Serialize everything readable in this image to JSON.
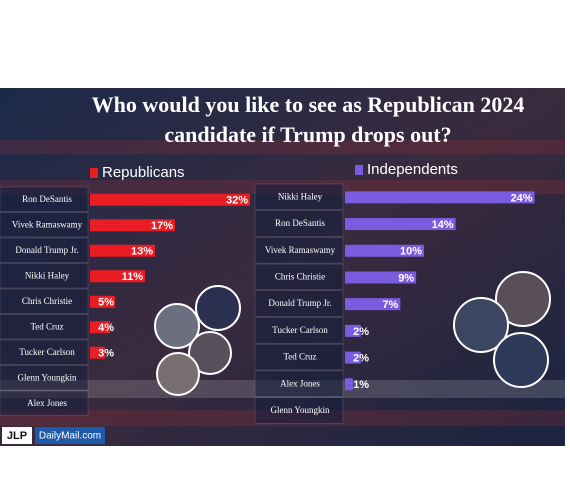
{
  "title": [
    "Who would you like to see as Republican 2024",
    "candidate if Trump drops out?"
  ],
  "chart_data": [
    {
      "type": "bar",
      "horizontal": true,
      "categories": [
        "Ron DeSantis",
        "Vivek Ramaswamy",
        "Donald Trump Jr.",
        "Nikki Haley",
        "Chris Christie",
        "Ted Cruz",
        "Tucker Carlson",
        "Glenn Youngkin",
        "Alex Jones"
      ],
      "series": [
        {
          "name": "Republicans",
          "color": "#ea1c24",
          "values": [
            32,
            17,
            13,
            11,
            5,
            4,
            3,
            null,
            null
          ],
          "value_labels": [
            "32%",
            "17%",
            "13%",
            "11%",
            "5%",
            "4%",
            "3%",
            null,
            null
          ]
        }
      ]
    },
    {
      "type": "bar",
      "horizontal": true,
      "categories": [
        "Nikki Haley",
        "Ron DeSantis",
        "Vivek Ramaswamy",
        "Chris Christie",
        "Donald Trump Jr.",
        "Tucker Carlson",
        "Ted Cruz",
        "Alex Jones",
        "Glenn Youngkin"
      ],
      "series": [
        {
          "name": "Independents",
          "color": "#7b5ce0",
          "values": [
            24,
            14,
            10,
            9,
            7,
            2,
            2,
            1,
            null
          ],
          "value_labels": [
            "24%",
            "14%",
            "10%",
            "9%",
            "7%",
            "2%",
            "2%",
            "1%",
            null
          ]
        }
      ]
    }
  ],
  "footer": {
    "logo": "JLP",
    "source": "DailyMail.com"
  }
}
